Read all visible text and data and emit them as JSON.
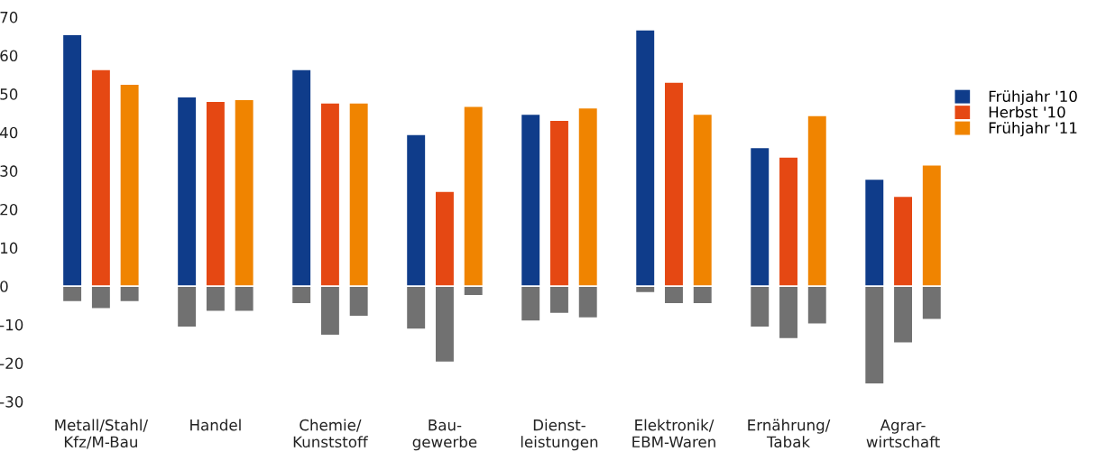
{
  "chart_data": {
    "type": "bar",
    "stacked": true,
    "categories": [
      null,
      "Metall/Stahl/\nKfz/M-Bau",
      null,
      null,
      null,
      "Handel",
      null,
      null,
      null,
      "Chemie/\nKunststoff",
      null,
      null,
      null,
      "Bau-\ngewerbe",
      null,
      null,
      null,
      "Dienst-\nleistungen",
      null,
      null,
      null,
      "Elektronik/\nEBM-Waren",
      null,
      null,
      null,
      "Ernährung/\nTabak",
      null,
      null,
      null,
      "Agrar-\nwirtschaft",
      null
    ],
    "series": [
      {
        "name": "Frühjahr '10",
        "color": "#0f3c8a",
        "values": [
          65.5,
          null,
          null,
          null,
          49.3,
          null,
          null,
          null,
          56.4,
          null,
          null,
          null,
          39.5,
          null,
          null,
          null,
          44.8,
          null,
          null,
          null,
          66.7,
          null,
          null,
          null,
          36.1,
          null,
          null,
          null,
          27.9,
          null,
          null
        ]
      },
      {
        "name": "Herbst '10",
        "color": "#e54813",
        "values": [
          null,
          56.4,
          null,
          null,
          null,
          48.1,
          null,
          null,
          null,
          47.7,
          null,
          null,
          null,
          24.7,
          null,
          null,
          null,
          43.2,
          null,
          null,
          null,
          53.1,
          null,
          null,
          null,
          33.6,
          null,
          null,
          null,
          23.4,
          null
        ]
      },
      {
        "name": "Frühjahr '11",
        "color": "#f08400",
        "values": [
          null,
          null,
          52.6,
          null,
          null,
          null,
          48.6,
          null,
          null,
          null,
          47.7,
          null,
          null,
          null,
          46.8,
          null,
          null,
          null,
          46.4,
          null,
          null,
          null,
          44.8,
          null,
          null,
          null,
          44.4,
          null,
          null,
          null,
          31.6
        ]
      },
      {
        "color": "#717171",
        "values": [
          -4.1,
          -5.9,
          -4.1,
          null,
          -10.7,
          -6.6,
          -6.6,
          null,
          -4.6,
          -12.8,
          -7.9,
          null,
          -11.2,
          -19.8,
          -2.5,
          null,
          -9.1,
          -7.1,
          -8.3,
          null,
          -1.7,
          -4.6,
          -4.6,
          null,
          -10.7,
          -13.7,
          -9.9,
          null,
          -25.5,
          -14.8,
          -8.7
        ]
      }
    ],
    "ylim": [
      -30,
      70
    ],
    "yticks": [
      -30,
      -20,
      -10,
      0,
      10,
      20,
      30,
      40,
      50,
      60,
      70
    ],
    "legend": "right",
    "grid": false
  }
}
